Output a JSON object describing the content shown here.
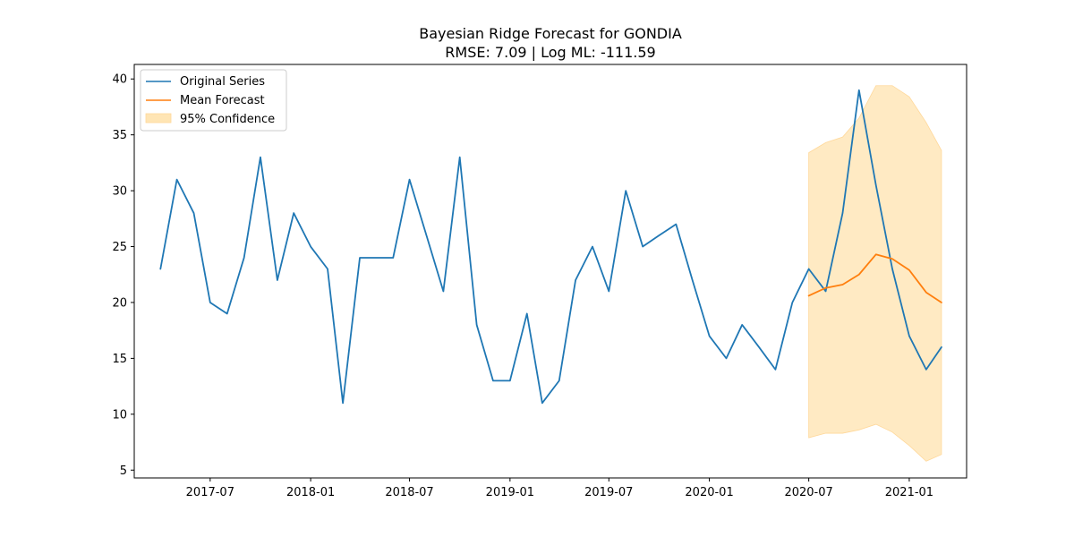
{
  "chart_data": {
    "type": "line",
    "title": "Bayesian Ridge Forecast for GONDIA",
    "subtitle": "RMSE: 7.09 | Log ML: -111.59",
    "xlabel": "",
    "ylabel": "",
    "xlim": [
      "2017-02-12",
      "2021-04-16"
    ],
    "ylim": [
      4.3,
      41.3
    ],
    "grid": false,
    "legend_position": "top-left",
    "x_ticks": [
      {
        "date": "2017-07-01",
        "label": "2017-07"
      },
      {
        "date": "2018-01-01",
        "label": "2018-01"
      },
      {
        "date": "2018-07-01",
        "label": "2018-07"
      },
      {
        "date": "2019-01-01",
        "label": "2019-01"
      },
      {
        "date": "2019-07-01",
        "label": "2019-07"
      },
      {
        "date": "2020-01-01",
        "label": "2020-01"
      },
      {
        "date": "2020-07-01",
        "label": "2020-07"
      },
      {
        "date": "2021-01-01",
        "label": "2021-01"
      }
    ],
    "y_ticks": [
      5,
      10,
      15,
      20,
      25,
      30,
      35,
      40
    ],
    "series": [
      {
        "name": "Original Series",
        "color": "#1f77b4",
        "x": [
          "2017-04",
          "2017-05",
          "2017-06",
          "2017-07",
          "2017-08",
          "2017-09",
          "2017-10",
          "2017-11",
          "2017-12",
          "2018-01",
          "2018-02",
          "2018-03",
          "2018-04",
          "2018-05",
          "2018-06",
          "2018-07",
          "2018-08",
          "2018-09",
          "2018-10",
          "2018-11",
          "2018-12",
          "2019-01",
          "2019-02",
          "2019-03",
          "2019-04",
          "2019-05",
          "2019-06",
          "2019-07",
          "2019-08",
          "2019-09",
          "2019-10",
          "2019-11",
          "2019-12",
          "2020-01",
          "2020-02",
          "2020-03",
          "2020-04",
          "2020-05",
          "2020-06",
          "2020-07",
          "2020-08",
          "2020-09",
          "2020-10",
          "2020-11",
          "2020-12",
          "2021-01",
          "2021-02",
          "2021-03"
        ],
        "values": [
          23,
          31,
          28,
          20,
          19,
          24,
          33,
          22,
          28,
          25,
          23,
          11,
          24,
          24,
          24,
          31,
          26,
          21,
          33,
          18,
          13,
          13,
          19,
          11,
          13,
          22,
          25,
          21,
          30,
          25,
          26,
          27,
          22,
          17,
          15,
          18,
          16,
          14,
          20,
          23,
          21,
          28,
          39,
          30.5,
          23,
          17,
          14,
          16
        ]
      },
      {
        "name": "Mean Forecast",
        "color": "#ff7f0e",
        "x": [
          "2020-07",
          "2020-08",
          "2020-09",
          "2020-10",
          "2020-11",
          "2020-12",
          "2021-01",
          "2021-02",
          "2021-03"
        ],
        "values": [
          20.6,
          21.3,
          21.6,
          22.5,
          24.3,
          23.9,
          22.9,
          20.9,
          20
        ]
      }
    ],
    "confidence_band": {
      "name": "95% Confidence",
      "color": "#ffe5b4",
      "x": [
        "2020-07",
        "2020-08",
        "2020-09",
        "2020-10",
        "2020-11",
        "2020-12",
        "2021-01",
        "2021-02",
        "2021-03"
      ],
      "lower": [
        7.9,
        8.3,
        8.3,
        8.6,
        9.1,
        8.4,
        7.2,
        5.8,
        6.4
      ],
      "upper": [
        33.4,
        34.3,
        34.8,
        36.5,
        39.4,
        39.4,
        38.4,
        36.1,
        33.6
      ]
    }
  }
}
